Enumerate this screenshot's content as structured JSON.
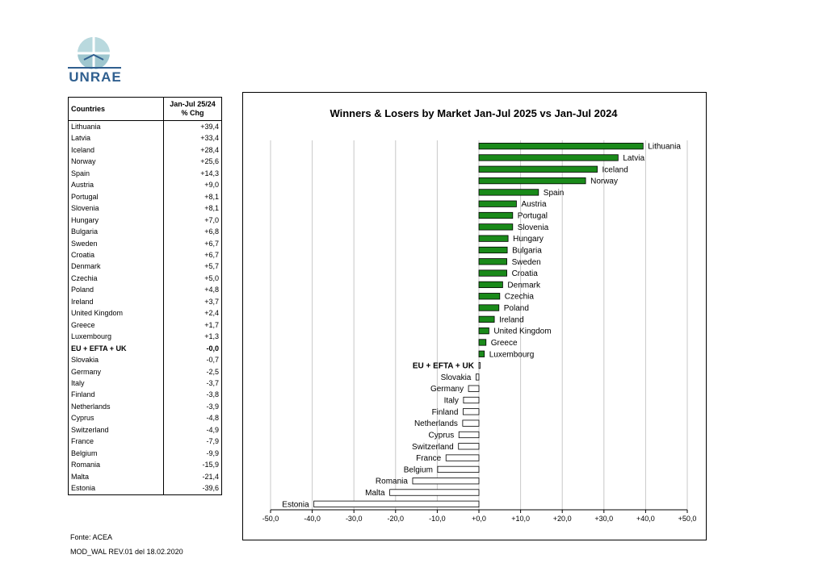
{
  "logo": {
    "text": "UNRAE"
  },
  "table": {
    "header_country": "Countries",
    "header_change_line1": "Jan-Jul 25/24",
    "header_change_line2": "% Chg",
    "rows": [
      {
        "country": "Lithuania",
        "chg": "+39,4"
      },
      {
        "country": "Latvia",
        "chg": "+33,4"
      },
      {
        "country": "Iceland",
        "chg": "+28,4"
      },
      {
        "country": "Norway",
        "chg": "+25,6"
      },
      {
        "country": "Spain",
        "chg": "+14,3"
      },
      {
        "country": "Austria",
        "chg": "+9,0"
      },
      {
        "country": "Portugal",
        "chg": "+8,1"
      },
      {
        "country": "Slovenia",
        "chg": "+8,1"
      },
      {
        "country": "Hungary",
        "chg": "+7,0"
      },
      {
        "country": "Bulgaria",
        "chg": "+6,8"
      },
      {
        "country": "Sweden",
        "chg": "+6,7"
      },
      {
        "country": "Croatia",
        "chg": "+6,7"
      },
      {
        "country": "Denmark",
        "chg": "+5,7"
      },
      {
        "country": "Czechia",
        "chg": "+5,0"
      },
      {
        "country": "Poland",
        "chg": "+4,8"
      },
      {
        "country": "Ireland",
        "chg": "+3,7"
      },
      {
        "country": "United Kingdom",
        "chg": "+2,4"
      },
      {
        "country": "Greece",
        "chg": "+1,7"
      },
      {
        "country": "Luxembourg",
        "chg": "+1,3"
      },
      {
        "country": "EU + EFTA + UK",
        "chg": "-0,0",
        "total": true
      },
      {
        "country": "Slovakia",
        "chg": "-0,7"
      },
      {
        "country": "Germany",
        "chg": "-2,5"
      },
      {
        "country": "Italy",
        "chg": "-3,7"
      },
      {
        "country": "Finland",
        "chg": "-3,8"
      },
      {
        "country": "Netherlands",
        "chg": "-3,9"
      },
      {
        "country": "Cyprus",
        "chg": "-4,8"
      },
      {
        "country": "Switzerland",
        "chg": "-4,9"
      },
      {
        "country": "France",
        "chg": "-7,9"
      },
      {
        "country": "Belgium",
        "chg": "-9,9"
      },
      {
        "country": "Romania",
        "chg": "-15,9"
      },
      {
        "country": "Malta",
        "chg": "-21,4"
      },
      {
        "country": "Estonia",
        "chg": "-39,6"
      }
    ]
  },
  "footer": {
    "source": "Fonte: ACEA",
    "model": "MOD_WAL REV.01 del 18.02.2020"
  },
  "colors": {
    "positive": "#1a8a1a",
    "negative": "#ffffff",
    "grid": "#c8c8c8"
  },
  "chart_data": {
    "type": "bar",
    "orientation": "horizontal",
    "title": "Winners & Losers by Market  Jan-Jul 2025 vs Jan-Jul 2024",
    "xlim": [
      -50,
      50
    ],
    "x_ticks": [
      "-50,0",
      "-40,0",
      "-30,0",
      "-20,0",
      "-10,0",
      "+0,0",
      "+10,0",
      "+20,0",
      "+30,0",
      "+40,0",
      "+50,0"
    ],
    "grid": "vertical",
    "categories": [
      "Lithuania",
      "Latvia",
      "Iceland",
      "Norway",
      "Spain",
      "Austria",
      "Portugal",
      "Slovenia",
      "Hungary",
      "Bulgaria",
      "Sweden",
      "Croatia",
      "Denmark",
      "Czechia",
      "Poland",
      "Ireland",
      "United Kingdom",
      "Greece",
      "Luxembourg",
      "EU + EFTA + UK",
      "Slovakia",
      "Germany",
      "Italy",
      "Finland",
      "Netherlands",
      "Cyprus",
      "Switzerland",
      "France",
      "Belgium",
      "Romania",
      "Malta",
      "Estonia"
    ],
    "values": [
      39.4,
      33.4,
      28.4,
      25.6,
      14.3,
      9.0,
      8.1,
      8.1,
      7.0,
      6.8,
      6.7,
      6.7,
      5.7,
      5.0,
      4.8,
      3.7,
      2.4,
      1.7,
      1.3,
      -0.0,
      -0.7,
      -2.5,
      -3.7,
      -3.8,
      -3.9,
      -4.8,
      -4.9,
      -7.9,
      -9.9,
      -15.9,
      -21.4,
      -39.6
    ]
  }
}
